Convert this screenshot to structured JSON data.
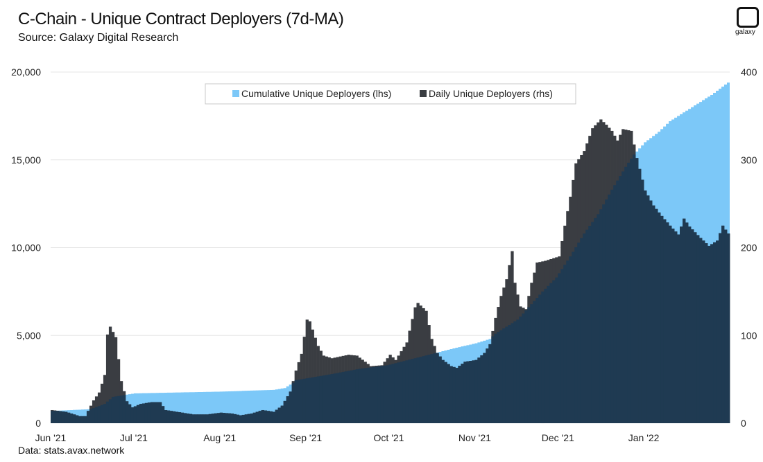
{
  "header": {
    "title": "C-Chain - Unique Contract Deployers (7d-MA)",
    "subtitle": "Source: Galaxy Digital Research"
  },
  "footer": {
    "text": "Data: stats.avax.network"
  },
  "logo": {
    "text": "galaxy",
    "icon": "galaxy-logo-icon"
  },
  "chart_data": {
    "type": "area",
    "x_start": "2021-06-01",
    "x_end": "2022-01-31",
    "xtick_labels": [
      "Jun '21",
      "Jul '21",
      "Aug '21",
      "Sep '21",
      "Oct '21",
      "Nov '21",
      "Dec '21",
      "Jan '22"
    ],
    "xtick_dates": [
      "2021-06-01",
      "2021-07-01",
      "2021-08-01",
      "2021-09-01",
      "2021-10-01",
      "2021-11-01",
      "2021-12-01",
      "2022-01-01"
    ],
    "y_left": {
      "ylim": [
        0,
        20000
      ],
      "tick_labels": [
        "0",
        "5,000",
        "10,000",
        "15,000",
        "20,000"
      ],
      "ticks": [
        0,
        5000,
        10000,
        15000,
        20000
      ]
    },
    "y_right": {
      "ylim": [
        0,
        400
      ],
      "tick_labels": [
        "0",
        "100",
        "200",
        "300",
        "400"
      ],
      "ticks": [
        0,
        100,
        200,
        300,
        400
      ]
    },
    "grid": true,
    "legend": {
      "position": "top-center"
    },
    "colors": {
      "cumulative": "#7cc8f8",
      "daily": "#3a3d42",
      "overlap": "#1f3a52"
    },
    "series": [
      {
        "name": "Cumulative Unique Deployers (lhs)",
        "axis": "left",
        "kind": "area",
        "points": [
          [
            "2021-06-01",
            700
          ],
          [
            "2021-06-15",
            800
          ],
          [
            "2021-06-20",
            1100
          ],
          [
            "2021-06-23",
            1500
          ],
          [
            "2021-07-01",
            1700
          ],
          [
            "2021-08-01",
            1800
          ],
          [
            "2021-08-20",
            1900
          ],
          [
            "2021-08-24",
            2000
          ],
          [
            "2021-08-27",
            2300
          ],
          [
            "2021-08-28",
            2450
          ],
          [
            "2021-09-10",
            2800
          ],
          [
            "2021-09-20",
            3100
          ],
          [
            "2021-09-30",
            3300
          ],
          [
            "2021-10-10",
            3700
          ],
          [
            "2021-10-15",
            3900
          ],
          [
            "2021-10-25",
            4300
          ],
          [
            "2021-11-01",
            4550
          ],
          [
            "2021-11-06",
            4800
          ],
          [
            "2021-11-08",
            5100
          ],
          [
            "2021-11-10",
            5300
          ],
          [
            "2021-11-12",
            5500
          ],
          [
            "2021-11-16",
            5900
          ],
          [
            "2021-11-20",
            6600
          ],
          [
            "2021-11-25",
            7500
          ],
          [
            "2021-11-30",
            8300
          ],
          [
            "2021-12-05",
            9500
          ],
          [
            "2021-12-10",
            10800
          ],
          [
            "2021-12-15",
            11900
          ],
          [
            "2021-12-20",
            13300
          ],
          [
            "2021-12-25",
            14600
          ],
          [
            "2021-12-28",
            15300
          ],
          [
            "2022-01-01",
            16000
          ],
          [
            "2022-01-06",
            16600
          ],
          [
            "2022-01-10",
            17200
          ],
          [
            "2022-01-15",
            17700
          ],
          [
            "2022-01-20",
            18200
          ],
          [
            "2022-01-25",
            18700
          ],
          [
            "2022-01-31",
            19400
          ]
        ]
      },
      {
        "name": "Daily Unique Deployers (rhs)",
        "axis": "right",
        "kind": "bar",
        "anchors": [
          [
            "2021-06-01",
            15
          ],
          [
            "2021-06-06",
            13
          ],
          [
            "2021-06-11",
            8
          ],
          [
            "2021-06-13",
            8
          ],
          [
            "2021-06-16",
            26
          ],
          [
            "2021-06-18",
            35
          ],
          [
            "2021-06-20",
            55
          ],
          [
            "2021-06-21",
            101
          ],
          [
            "2021-06-22",
            110
          ],
          [
            "2021-06-24",
            98
          ],
          [
            "2021-06-26",
            48
          ],
          [
            "2021-06-28",
            25
          ],
          [
            "2021-06-30",
            18
          ],
          [
            "2021-07-03",
            22
          ],
          [
            "2021-07-07",
            24
          ],
          [
            "2021-07-10",
            24
          ],
          [
            "2021-07-12",
            15
          ],
          [
            "2021-07-18",
            12
          ],
          [
            "2021-07-22",
            10
          ],
          [
            "2021-07-27",
            10
          ],
          [
            "2021-08-01",
            12
          ],
          [
            "2021-08-05",
            11
          ],
          [
            "2021-08-08",
            9
          ],
          [
            "2021-08-12",
            11
          ],
          [
            "2021-08-16",
            15
          ],
          [
            "2021-08-20",
            13
          ],
          [
            "2021-08-23",
            20
          ],
          [
            "2021-08-26",
            36
          ],
          [
            "2021-08-28",
            60
          ],
          [
            "2021-08-30",
            79
          ],
          [
            "2021-09-01",
            118
          ],
          [
            "2021-09-02",
            116
          ],
          [
            "2021-09-05",
            88
          ],
          [
            "2021-09-07",
            77
          ],
          [
            "2021-09-10",
            74
          ],
          [
            "2021-09-13",
            76
          ],
          [
            "2021-09-16",
            78
          ],
          [
            "2021-09-19",
            77
          ],
          [
            "2021-09-22",
            70
          ],
          [
            "2021-09-24",
            65
          ],
          [
            "2021-09-28",
            66
          ],
          [
            "2021-10-01",
            78
          ],
          [
            "2021-10-03",
            72
          ],
          [
            "2021-10-07",
            92
          ],
          [
            "2021-10-10",
            132
          ],
          [
            "2021-10-11",
            137
          ],
          [
            "2021-10-14",
            128
          ],
          [
            "2021-10-16",
            96
          ],
          [
            "2021-10-18",
            80
          ],
          [
            "2021-10-20",
            72
          ],
          [
            "2021-10-23",
            65
          ],
          [
            "2021-10-25",
            63
          ],
          [
            "2021-10-28",
            70
          ],
          [
            "2021-11-01",
            72
          ],
          [
            "2021-11-04",
            80
          ],
          [
            "2021-11-06",
            90
          ],
          [
            "2021-11-08",
            120
          ],
          [
            "2021-11-10",
            145
          ],
          [
            "2021-11-12",
            164
          ],
          [
            "2021-11-14",
            196
          ],
          [
            "2021-11-15",
            160
          ],
          [
            "2021-11-17",
            133
          ],
          [
            "2021-11-19",
            130
          ],
          [
            "2021-11-21",
            160
          ],
          [
            "2021-11-23",
            183
          ],
          [
            "2021-11-26",
            185
          ],
          [
            "2021-12-01",
            190
          ],
          [
            "2021-12-03",
            225
          ],
          [
            "2021-12-05",
            258
          ],
          [
            "2021-12-07",
            296
          ],
          [
            "2021-12-10",
            310
          ],
          [
            "2021-12-13",
            336
          ],
          [
            "2021-12-16",
            346
          ],
          [
            "2021-12-18",
            340
          ],
          [
            "2021-12-20",
            333
          ],
          [
            "2021-12-22",
            322
          ],
          [
            "2021-12-24",
            335
          ],
          [
            "2021-12-27",
            333
          ],
          [
            "2021-12-29",
            302
          ],
          [
            "2022-01-01",
            265
          ],
          [
            "2022-01-04",
            248
          ],
          [
            "2022-01-07",
            236
          ],
          [
            "2022-01-10",
            225
          ],
          [
            "2022-01-13",
            215
          ],
          [
            "2022-01-15",
            233
          ],
          [
            "2022-01-17",
            224
          ],
          [
            "2022-01-21",
            211
          ],
          [
            "2022-01-24",
            202
          ],
          [
            "2022-01-27",
            208
          ],
          [
            "2022-01-29",
            225
          ],
          [
            "2022-01-31",
            216
          ]
        ]
      }
    ]
  }
}
